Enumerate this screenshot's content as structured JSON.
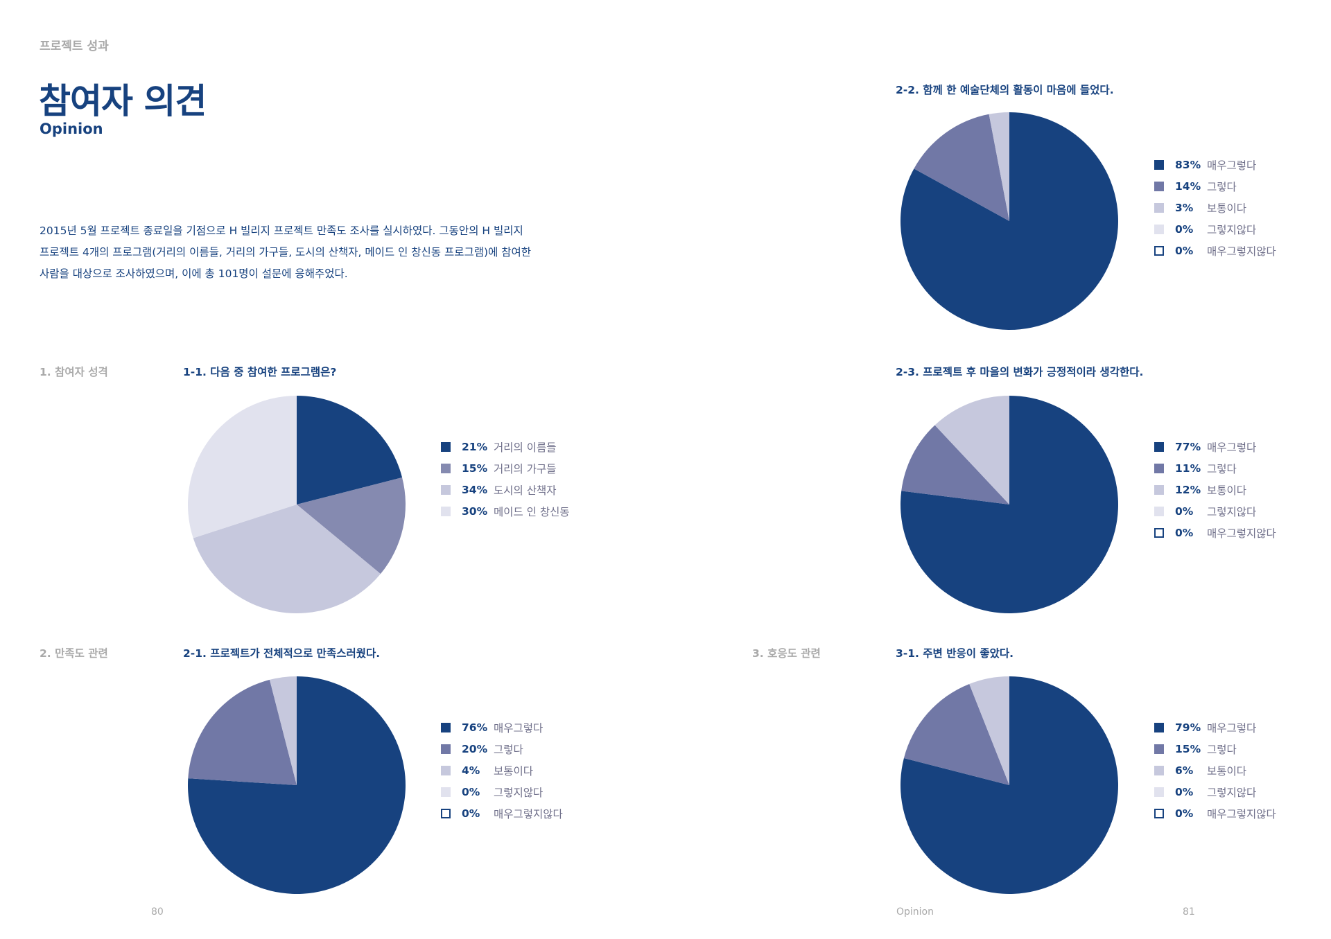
{
  "header": {
    "section_label": "프로젝트 성과",
    "title": "참여자 의견",
    "subtitle": "Opinion"
  },
  "intro": {
    "lines": [
      "2015년 5월 프로젝트 종료일을 기점으로 H 빌리지 프로젝트 만족도 조사를 실시하였다. 그동안의 H 빌리지",
      "프로젝트 4개의 프로그램(거리의 이름들, 거리의 가구들, 도시의 산책자, 메이드 인 창신동 프로그램)에 참여한",
      "사람을 대상으로 조사하였으며, 이에 총 101명이 설문에 응해주었다."
    ]
  },
  "groups": [
    {
      "label": "1. 참여자 성격"
    },
    {
      "label": "2. 만족도 관련"
    },
    {
      "label": "3. 호응도 관련"
    }
  ],
  "colors": {
    "primary": "#17427f",
    "c1": "#17427f",
    "c2": "#7178a6",
    "c3": "#c6c8dd",
    "c4": "#e1e2ee",
    "empty": "#ffffff"
  },
  "chart_data": [
    {
      "type": "pie",
      "title": "1-1. 다음 중 참여한 프로그램은?",
      "categories": [
        "거리의 이름들",
        "거리의 가구들",
        "도시의 산책자",
        "메이드 인 창신동"
      ],
      "values": [
        21,
        15,
        34,
        30
      ],
      "value_labels": [
        "21%",
        "15%",
        "34%",
        "30%"
      ],
      "slice_colors": [
        "#17427f",
        "#858ab0",
        "#c6c8dd",
        "#e1e2ee"
      ],
      "legend_position": "right"
    },
    {
      "type": "pie",
      "title": "2-1. 프로젝트가 전체적으로 만족스러웠다.",
      "categories": [
        "매우그렇다",
        "그렇다",
        "보통이다",
        "그렇지않다",
        "매우그렇지않다"
      ],
      "values": [
        76,
        20,
        4,
        0,
        0
      ],
      "value_labels": [
        "76%",
        "20%",
        "4%",
        "0%",
        "0%"
      ],
      "slice_colors": [
        "#17427f",
        "#7178a6",
        "#c6c8dd",
        "#e1e2ee",
        "#ffffff"
      ],
      "legend_position": "right"
    },
    {
      "type": "pie",
      "title": "2-2. 함께 한 예술단체의 활동이 마음에 들었다.",
      "categories": [
        "매우그렇다",
        "그렇다",
        "보통이다",
        "그렇지않다",
        "매우그렇지않다"
      ],
      "values": [
        83,
        14,
        3,
        0,
        0
      ],
      "value_labels": [
        "83%",
        "14%",
        "3%",
        "0%",
        "0%"
      ],
      "slice_colors": [
        "#17427f",
        "#7178a6",
        "#c6c8dd",
        "#e1e2ee",
        "#ffffff"
      ],
      "legend_position": "right"
    },
    {
      "type": "pie",
      "title": "2-3. 프로젝트 후 마을의 변화가 긍정적이라 생각한다.",
      "categories": [
        "매우그렇다",
        "그렇다",
        "보통이다",
        "그렇지않다",
        "매우그렇지않다"
      ],
      "values": [
        77,
        11,
        12,
        0,
        0
      ],
      "value_labels": [
        "77%",
        "11%",
        "12%",
        "0%",
        "0%"
      ],
      "slice_colors": [
        "#17427f",
        "#7178a6",
        "#c6c8dd",
        "#e1e2ee",
        "#ffffff"
      ],
      "legend_position": "right"
    },
    {
      "type": "pie",
      "title": "3-1. 주변 반응이 좋았다.",
      "categories": [
        "매우그렇다",
        "그렇다",
        "보통이다",
        "그렇지않다",
        "매우그렇지않다"
      ],
      "values": [
        79,
        15,
        6,
        0,
        0
      ],
      "value_labels": [
        "79%",
        "15%",
        "6%",
        "0%",
        "0%"
      ],
      "slice_colors": [
        "#17427f",
        "#7178a6",
        "#c6c8dd",
        "#e1e2ee",
        "#ffffff"
      ],
      "legend_position": "right"
    }
  ],
  "footer": {
    "left_page_number": "80",
    "right_section": "Opinion",
    "right_page_number": "81"
  }
}
